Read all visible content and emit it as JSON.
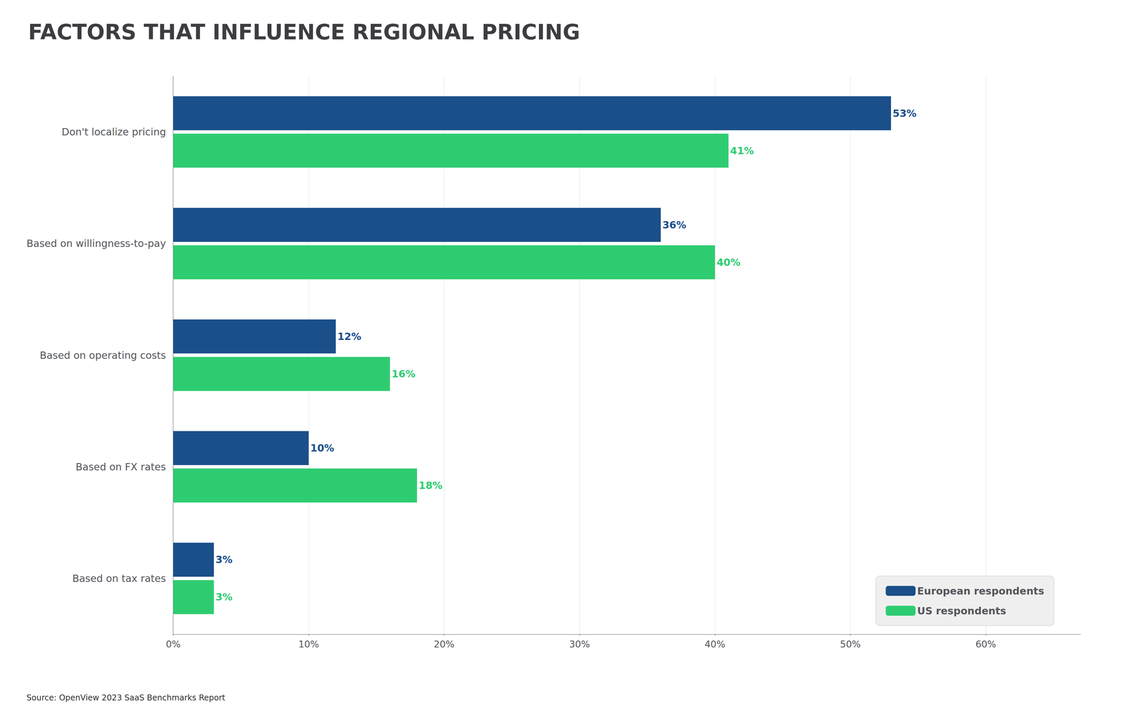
{
  "chart_data": {
    "type": "bar",
    "orientation": "horizontal",
    "title": "FACTORS THAT INFLUENCE REGIONAL PRICING",
    "categories": [
      "Based on tax rates",
      "Based on FX rates",
      "Based on operating costs",
      "Based on willingness-to-pay",
      "Don't localize pricing"
    ],
    "series": [
      {
        "name": "European respondents",
        "color": "#1A4F8A",
        "values": [
          3,
          10,
          12,
          36,
          53
        ],
        "value_labels": [
          "3%",
          "10%",
          "12%",
          "36%",
          "53%"
        ]
      },
      {
        "name": "US respondents",
        "color": "#2ECC71",
        "values": [
          3,
          18,
          16,
          40,
          41
        ],
        "value_labels": [
          "3%",
          "18%",
          "16%",
          "40%",
          "41%"
        ]
      }
    ],
    "xlim": [
      0,
      67
    ],
    "xticks": [
      {
        "value": 0,
        "label": "0%"
      },
      {
        "value": 10,
        "label": "10%"
      },
      {
        "value": 20,
        "label": "20%"
      },
      {
        "value": 30,
        "label": "30%"
      },
      {
        "value": 40,
        "label": "40%"
      },
      {
        "value": 50,
        "label": "50%"
      },
      {
        "value": 60,
        "label": "60%"
      }
    ],
    "grid": true,
    "legend": "lower right",
    "data_labels": true,
    "annotations": [
      "Source: OpenView 2023 SaaS Benchmarks Report"
    ]
  }
}
